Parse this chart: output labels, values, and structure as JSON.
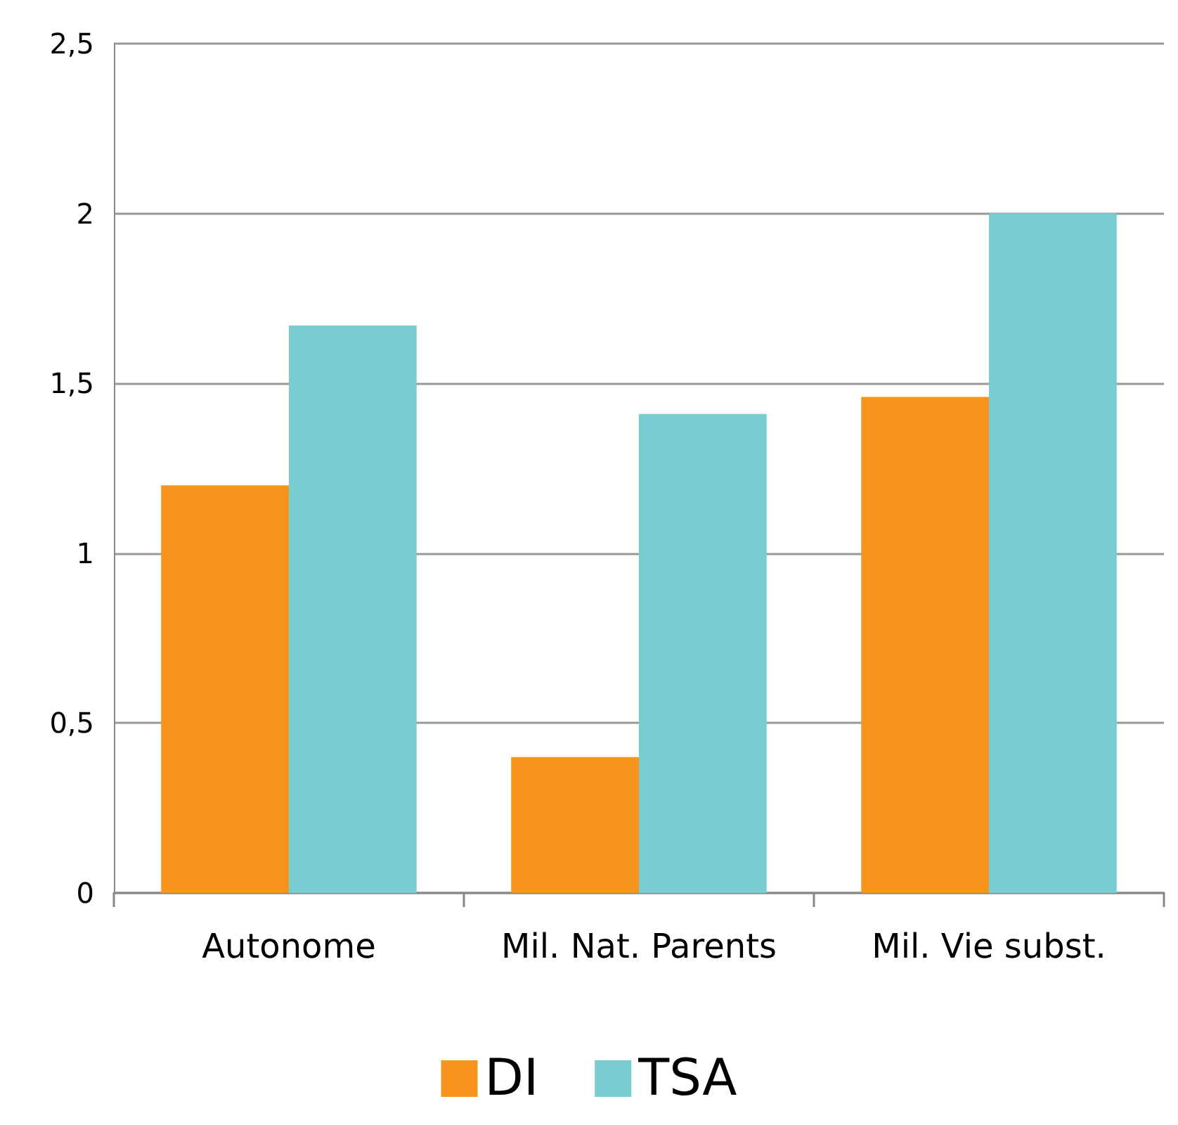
{
  "chart_data": {
    "type": "bar",
    "categories": [
      "Autonome",
      "Mil. Nat. Parents",
      "Mil. Vie subst."
    ],
    "series": [
      {
        "name": "DI",
        "color": "#f7941d",
        "values": [
          1.2,
          0.4,
          1.46
        ]
      },
      {
        "name": "TSA",
        "color": "#78cdd0",
        "values": [
          1.67,
          1.41,
          2.0
        ]
      }
    ],
    "ylim": [
      0,
      2.5
    ],
    "yticks": [
      0,
      {
        "value": 0.5,
        "label": "0,5"
      },
      1,
      {
        "value": 1.5,
        "label": "1,5"
      },
      2,
      {
        "value": 2.5,
        "label": "2,5"
      }
    ],
    "grid": "y",
    "legend": "bottom"
  }
}
